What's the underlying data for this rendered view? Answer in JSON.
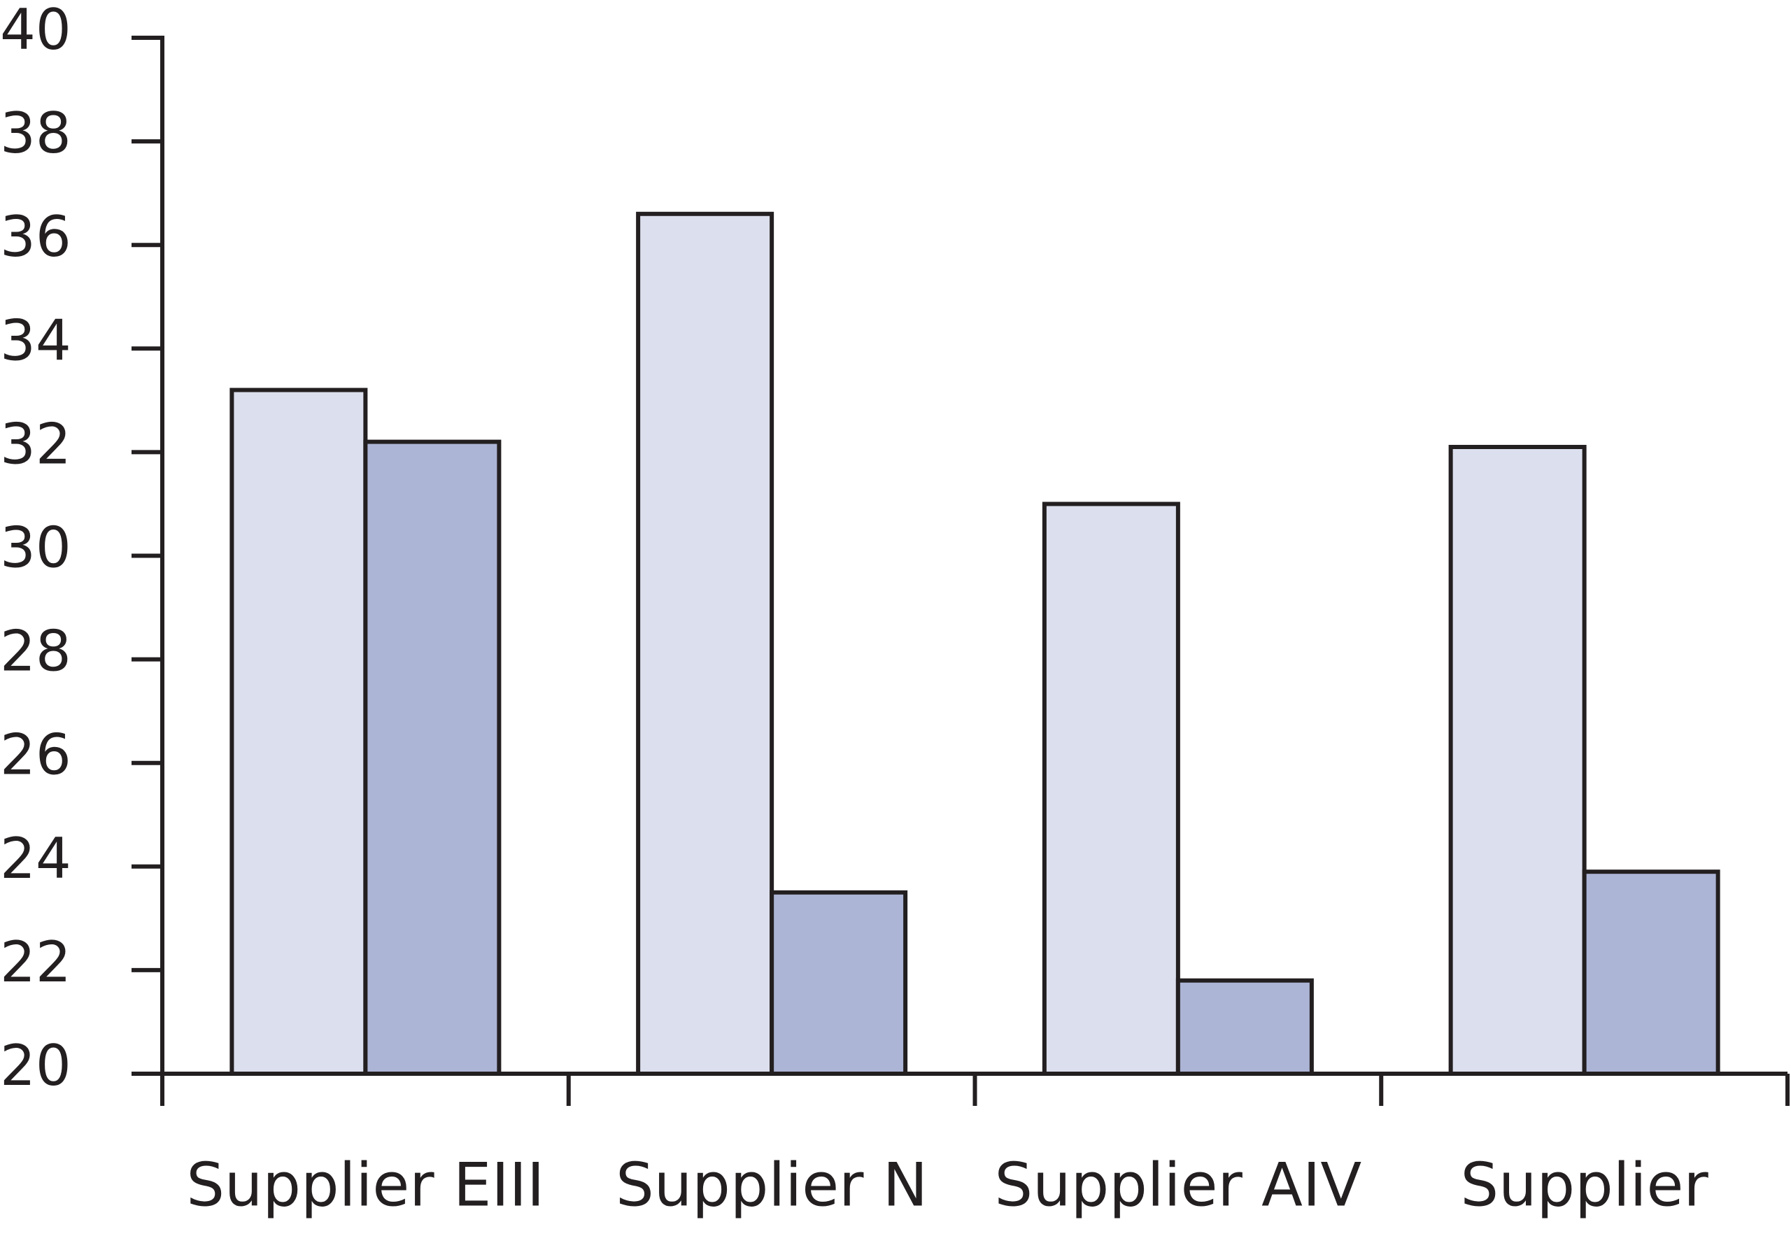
{
  "chart_data": {
    "type": "bar",
    "categories": [
      "Supplier EIII",
      "Supplier N",
      "Supplier AIV",
      "Supplier"
    ],
    "series": [
      {
        "color": "#dcdfed",
        "values": [
          33.2,
          36.6,
          31.0,
          32.1
        ]
      },
      {
        "color": "#adb5d6",
        "values": [
          32.2,
          23.5,
          21.8,
          23.9
        ]
      }
    ],
    "ylim": [
      20,
      40
    ],
    "yticks": [
      20,
      22,
      24,
      26,
      28,
      30,
      32,
      34,
      36,
      38,
      40
    ],
    "grid": false
  }
}
